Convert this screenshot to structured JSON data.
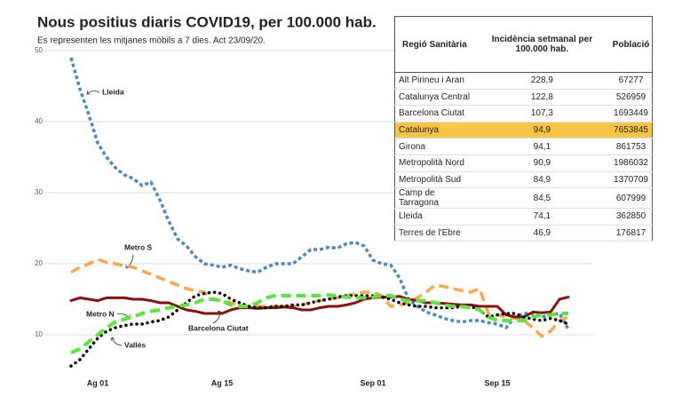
{
  "chart_data": {
    "type": "line",
    "title": "Nous positius diaris COVID19, per 100.000 hab.",
    "subtitle": "Es representen les mitjanes mòbils a 7 dies. Act 23/09/20.",
    "categories": [
      null,
      null,
      null,
      "Ag 01",
      null,
      null,
      null,
      null,
      null,
      null,
      null,
      null,
      null,
      null,
      null,
      null,
      null,
      "Ag 15",
      null,
      null,
      null,
      null,
      null,
      null,
      null,
      null,
      null,
      null,
      null,
      null,
      null,
      null,
      null,
      null,
      "Sep 01",
      null,
      null,
      null,
      null,
      null,
      null,
      null,
      null,
      null,
      null,
      null,
      null,
      null,
      "Sep 15",
      null,
      null,
      null,
      null,
      null,
      null,
      null,
      null
    ],
    "ylim": [
      5,
      50
    ],
    "yticks": [
      10,
      20,
      30,
      40,
      50
    ],
    "grid": true,
    "series": [
      {
        "name": "Lleida",
        "color": "#4a8ac0",
        "values": [
          49,
          44.6,
          41,
          37,
          35,
          33.5,
          32.5,
          32,
          31,
          31.5,
          29,
          26,
          23.5,
          22.5,
          21,
          20,
          19.8,
          19.5,
          19.8,
          19.3,
          19,
          18.8,
          19.5,
          20,
          20,
          20,
          21,
          22,
          22,
          22.3,
          22.2,
          22.8,
          23,
          22.5,
          20.5,
          20,
          19.8,
          18,
          15,
          14,
          13.2,
          12.8,
          12.3,
          12,
          11.8,
          12,
          12,
          11.7,
          11.5,
          11,
          12.5,
          13,
          13,
          12.5,
          12.8,
          13,
          10.8
        ]
      },
      {
        "name": "Metro S",
        "color": "#f7a84a",
        "values": [
          18.8,
          19.5,
          20,
          20.6,
          20.2,
          20,
          19.7,
          19.5,
          19,
          18.5,
          18,
          17.5,
          17,
          16.5,
          16.2,
          16,
          15,
          14.8,
          14.5,
          14.2,
          14,
          14,
          14,
          14,
          14,
          14,
          14.2,
          14.5,
          14.8,
          15,
          15.2,
          15.5,
          15.8,
          16,
          16,
          15.5,
          14,
          14.2,
          14.5,
          15.2,
          16,
          17,
          16.8,
          16.5,
          16.2,
          16,
          16.5,
          13,
          12.8,
          12.5,
          12.3,
          12,
          11,
          9.8,
          10.5,
          12,
          12.5
        ]
      },
      {
        "name": "Barcelona Ciutat",
        "color": "#8b0f0f",
        "values": [
          14.8,
          15.2,
          15,
          14.8,
          15.2,
          15.2,
          15.2,
          15,
          15,
          14.8,
          14.5,
          14.5,
          14,
          13.5,
          13.3,
          13,
          13,
          13,
          13.5,
          13.8,
          13.8,
          13.7,
          13.8,
          13.8,
          13.9,
          13.8,
          13.5,
          13.5,
          13.8,
          14,
          14,
          14.2,
          14.5,
          15,
          15.2,
          15.3,
          15.3,
          15.4,
          15,
          14.8,
          14.5,
          14.5,
          14.4,
          14.3,
          14.2,
          14.2,
          14,
          14,
          14,
          12.8,
          12.5,
          12.5,
          13.2,
          13.1,
          13.2,
          15,
          15.3
        ]
      },
      {
        "name": "Metro N",
        "color": "#000000",
        "values": [
          5.6,
          6.5,
          8,
          9.5,
          10.5,
          11,
          11.3,
          11.5,
          11.5,
          11.8,
          12,
          12.5,
          13.5,
          14.5,
          15.5,
          15.8,
          16,
          15.8,
          15,
          14.5,
          14,
          13.8,
          13.8,
          14,
          14,
          14.2,
          14.2,
          14.5,
          14.8,
          15,
          15.3,
          15.5,
          15.5,
          15.5,
          15.5,
          15.3,
          15,
          14.5,
          14.2,
          14,
          14,
          13.8,
          13.8,
          13.8,
          14,
          14,
          13.5,
          12.5,
          12.8,
          13,
          13,
          12.5,
          12.2,
          12,
          12.3,
          12,
          11.5
        ]
      },
      {
        "name": "Vallès",
        "color": "#55e83a",
        "values": [
          7.5,
          8,
          9,
          10,
          11,
          11.8,
          12.2,
          12.5,
          13,
          13.3,
          13.5,
          13.8,
          14,
          14.2,
          14.5,
          15,
          15,
          14.8,
          14.2,
          14,
          14,
          14.5,
          15.2,
          15.5,
          15.5,
          15.5,
          15.5,
          15.5,
          15.5,
          15.6,
          15.5,
          15.3,
          15.2,
          15.2,
          15.3,
          15.5,
          15.5,
          15,
          14.8,
          14.8,
          14.8,
          14.5,
          14.2,
          14,
          14,
          13.8,
          13.5,
          12.5,
          12,
          12,
          12,
          12,
          12.5,
          12.8,
          12.8,
          13,
          13
        ]
      }
    ]
  },
  "table": {
    "columns": [
      "Regió Sanitària",
      "Incidència setmanal per 100.000 hab.",
      "Població"
    ],
    "highlight_row": 3,
    "highlight_color": "#f9c544",
    "rows": [
      [
        "Alt Pirineu i Aran",
        "228,9",
        "67277"
      ],
      [
        "Catalunya Central",
        "122,8",
        "526959"
      ],
      [
        "Barcelona Ciutat",
        "107,3",
        "1693449"
      ],
      [
        "Catalunya",
        "94,9",
        "7653845"
      ],
      [
        "Girona",
        "94,1",
        "861753"
      ],
      [
        "Metropolità Nord",
        "90,9",
        "1986032"
      ],
      [
        "Metropolità Sud",
        "84,9",
        "1370709"
      ],
      [
        "Camp de Tarragona",
        "84,5",
        "607999"
      ],
      [
        "Lleida",
        "74,1",
        "362850"
      ],
      [
        "Terres de l'Ebre",
        "46,9",
        "176817"
      ]
    ]
  }
}
